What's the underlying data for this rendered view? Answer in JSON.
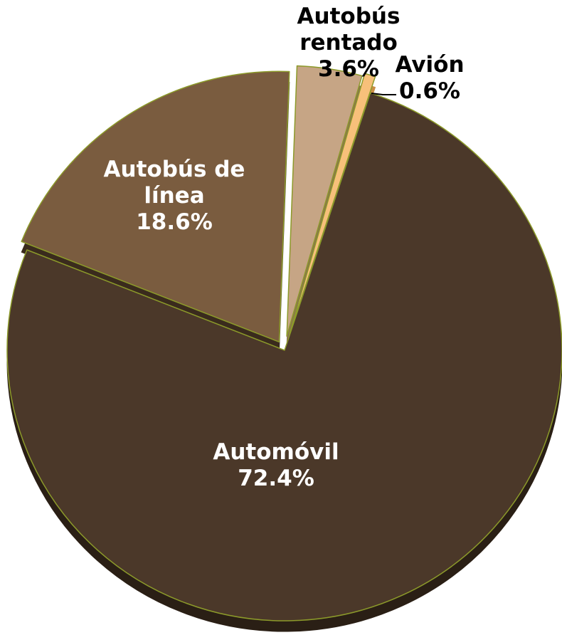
{
  "chart_data": {
    "type": "pie",
    "slices": [
      {
        "label": "Automóvil",
        "label_lines": [
          "Automóvil"
        ],
        "percent_text": "72.4%",
        "value": 72.4,
        "color": "#4b3829",
        "side": "#2a1f15",
        "text_color": "#ffffff"
      },
      {
        "label": "Autobús de línea",
        "label_lines": [
          "Autobús de",
          "línea"
        ],
        "percent_text": "18.6%",
        "value": 18.6,
        "color": "#7a5c3f",
        "side": "#3a2b1d",
        "text_color": "#ffffff"
      },
      {
        "label": "Autobús rentado",
        "label_lines": [
          "Autobús",
          "rentado"
        ],
        "percent_text": "3.6%",
        "value": 3.6,
        "color": "#c6a585",
        "side": "#8a6e52",
        "text_color": "#000000"
      },
      {
        "label": "Avión",
        "label_lines": [
          "Avión"
        ],
        "percent_text": "0.6%",
        "value": 0.6,
        "color": "#f7c07a",
        "side": "#c88d45",
        "text_color": "#000000"
      }
    ],
    "edge_color": "#8c9a2a"
  }
}
